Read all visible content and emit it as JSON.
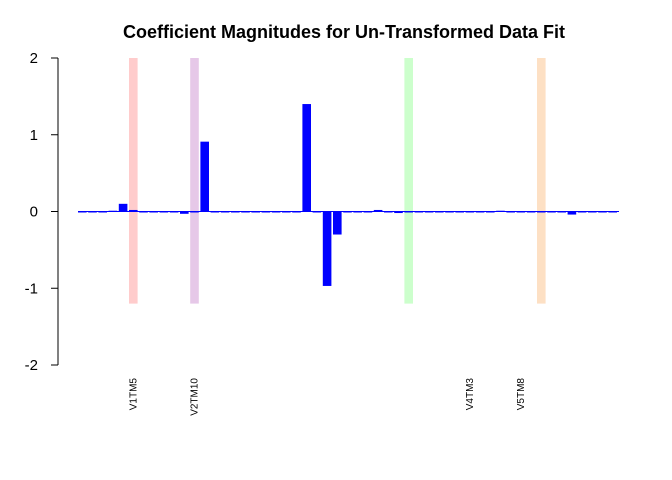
{
  "chart_data": {
    "type": "bar",
    "title": "Coefficient Magnitudes for Un-Transformed Data Fit",
    "xlabel": "",
    "ylabel": "",
    "ylim": [
      -2,
      2
    ],
    "yticks": [
      2,
      1,
      0,
      -1,
      -2
    ],
    "grid": false,
    "bar_color": "#0000ff",
    "values": [
      0,
      0,
      0,
      0.01,
      0.1,
      0.02,
      0,
      0,
      0,
      0,
      -0.03,
      0,
      0.91,
      0,
      0,
      0,
      0,
      0,
      0,
      0,
      0,
      0,
      1.4,
      0,
      -0.97,
      -0.3,
      0,
      0,
      0,
      0.02,
      0,
      -0.02,
      0,
      0,
      0,
      0,
      0,
      0,
      0,
      0,
      0,
      0.01,
      0,
      0,
      0,
      0,
      0,
      0,
      -0.04,
      0,
      0,
      0,
      0
    ],
    "labeled_categories": [
      {
        "index": 5,
        "label": "V1TM5"
      },
      {
        "index": 11,
        "label": "V2TM10"
      },
      {
        "index": 38,
        "label": "V4TM3"
      },
      {
        "index": 43,
        "label": "V5TM8"
      }
    ],
    "highlight_bands": [
      {
        "index": 5,
        "color": "#ffcccc"
      },
      {
        "index": 11,
        "color": "#e6c8e8"
      },
      {
        "index": 32,
        "color": "#ccffcc"
      },
      {
        "index": 45,
        "color": "#fde0c4"
      }
    ],
    "band_ylim": [
      -1.2,
      2
    ]
  }
}
